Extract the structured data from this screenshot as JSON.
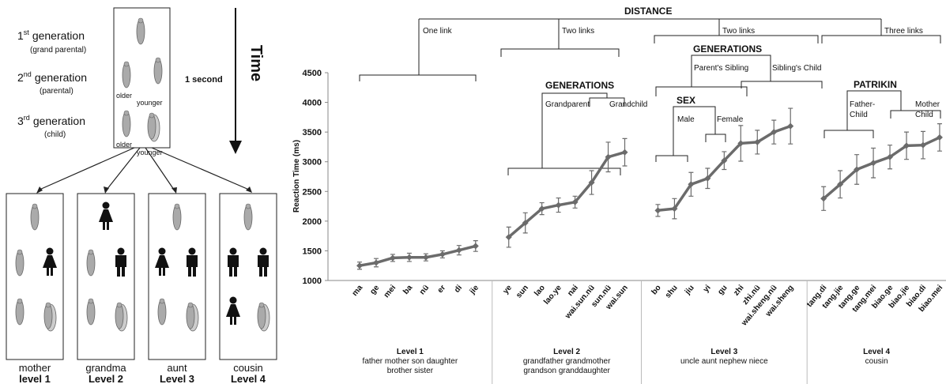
{
  "diagram": {
    "generations": [
      {
        "ordinal": "1",
        "suffix": "st",
        "label": "generation",
        "sub": "(grand parental)"
      },
      {
        "ordinal": "2",
        "suffix": "nd",
        "label": "generation",
        "sub": "(parental)"
      },
      {
        "ordinal": "3",
        "suffix": "rd",
        "label": "generation",
        "sub": "(child)"
      }
    ],
    "older": "older",
    "younger": "younger",
    "duration": "1 second",
    "time": "Time",
    "panels": [
      {
        "relation": "mother",
        "level": "level 1"
      },
      {
        "relation": "grandma",
        "level": "Level 2"
      },
      {
        "relation": "aunt",
        "level": "Level 3"
      },
      {
        "relation": "cousin",
        "level": "Level 4"
      }
    ]
  },
  "chart_data": {
    "type": "line",
    "y_label": "Reaction Time (ms)",
    "ylim": [
      1000,
      4500
    ],
    "yticks": [
      1000,
      1500,
      2000,
      2500,
      3000,
      3500,
      4000,
      4500
    ],
    "color": "#6b6b6b",
    "categories": [
      "ma",
      "ge",
      "mei",
      "ba",
      "nü",
      "er",
      "di",
      "jie",
      null,
      "ye",
      "sun",
      "lao",
      "lao.ye",
      "nai",
      "wai.sun.nü",
      "sun.nü",
      "wai.sun",
      null,
      "bo",
      "shu",
      "jiu",
      "yi",
      "gu",
      "zhi",
      "zhi.nü",
      "wai.sheng.nü",
      "wai.sheng",
      null,
      "tang.di",
      "tang.jie",
      "tang.ge",
      "tang.mei",
      "biao.ge",
      "biao.jie",
      "biao.di",
      "biao.mei"
    ],
    "values": [
      1250,
      1300,
      1380,
      1390,
      1390,
      1440,
      1510,
      1580,
      null,
      1730,
      1970,
      2210,
      2270,
      2320,
      2650,
      3080,
      3160,
      null,
      2180,
      2210,
      2620,
      2720,
      3020,
      3310,
      3330,
      3500,
      3600,
      null,
      2380,
      2620,
      2870,
      2980,
      3080,
      3270,
      3280,
      3410
    ],
    "errors": [
      60,
      70,
      60,
      70,
      60,
      60,
      80,
      90,
      null,
      170,
      170,
      100,
      120,
      100,
      200,
      250,
      230,
      null,
      100,
      170,
      200,
      170,
      150,
      300,
      200,
      200,
      300,
      null,
      200,
      230,
      250,
      250,
      200,
      230,
      230,
      230
    ],
    "groups": [
      {
        "lines": [
          "Level 1",
          "father mother son daughter",
          "brother sister"
        ]
      },
      {
        "lines": [
          "Level 2",
          "grandfather grandmother",
          "grandson granddaughter"
        ]
      },
      {
        "lines": [
          "Level 3",
          "uncle aunt nephew niece"
        ]
      },
      {
        "lines": [
          "Level 4",
          "cousin"
        ]
      }
    ],
    "annotations": [
      "DISTANCE",
      "One link",
      "Two links",
      "Two links",
      "Three links",
      "GENERATIONS",
      "Grandparent",
      "Grandchild",
      "GENERATIONS",
      "Parent's Sibling",
      "Sibling's Child",
      "SEX",
      "Male",
      "Female",
      "PATRIKIN",
      "Father-",
      "Child",
      "Mother",
      "Child"
    ]
  }
}
